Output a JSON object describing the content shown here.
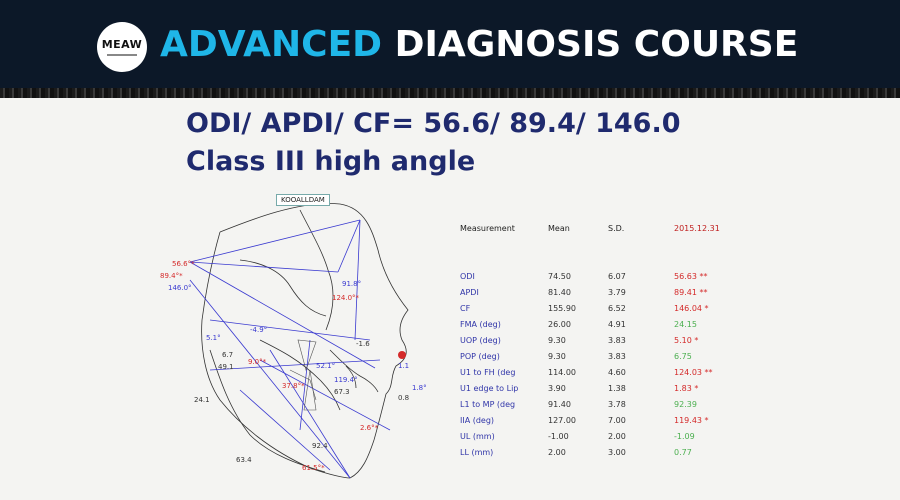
{
  "header": {
    "logo_text": "MEAW",
    "title_highlight": "ADVANCED",
    "title_rest": "DIAGNOSIS COURSE"
  },
  "headings": {
    "line1": "ODI/ APDI/ CF= 56.6/ 89.4/ 146.0",
    "line2": "Class III high angle"
  },
  "tracing": {
    "tag": "KOOALLDAM",
    "labels": [
      "56.6°*",
      "89.4°*",
      "146.0°",
      "91.8°",
      "124.0°*",
      "-4.9°",
      "5.1°",
      "6.7",
      "49.1",
      "-1.6",
      "9.0°*",
      "52.1°",
      "37.8°*",
      "119.4°",
      "67.3",
      "1.1",
      "1.8°",
      "0.8",
      "24.1",
      "2.6°*",
      "92.4",
      "63.4",
      "61.5°*"
    ]
  },
  "table": {
    "headers": [
      "Measurement",
      "Mean",
      "S.D.",
      "2015.12.31"
    ],
    "rows": [
      {
        "name": "ODI",
        "mean": "74.50",
        "sd": "6.07",
        "value": "56.63 **",
        "status": "red"
      },
      {
        "name": "APDI",
        "mean": "81.40",
        "sd": "3.79",
        "value": "89.41 **",
        "status": "red"
      },
      {
        "name": "CF",
        "mean": "155.90",
        "sd": "6.52",
        "value": "146.04 *",
        "status": "red"
      },
      {
        "name": "FMA (deg)",
        "mean": "26.00",
        "sd": "4.91",
        "value": "24.15",
        "status": "green"
      },
      {
        "name": "UOP (deg)",
        "mean": "9.30",
        "sd": "3.83",
        "value": "5.10 *",
        "status": "red"
      },
      {
        "name": "POP (deg)",
        "mean": "9.30",
        "sd": "3.83",
        "value": "6.75",
        "status": "green"
      },
      {
        "name": "U1 to FH (deg",
        "mean": "114.00",
        "sd": "4.60",
        "value": "124.03 **",
        "status": "red"
      },
      {
        "name": "U1 edge to Lip",
        "mean": "3.90",
        "sd": "1.38",
        "value": "1.83 *",
        "status": "red"
      },
      {
        "name": "L1 to MP (deg",
        "mean": "91.40",
        "sd": "3.78",
        "value": "92.39",
        "status": "green"
      },
      {
        "name": "IIA (deg)",
        "mean": "127.00",
        "sd": "7.00",
        "value": "119.43 *",
        "status": "red"
      },
      {
        "name": "UL (mm)",
        "mean": "-1.00",
        "sd": "2.00",
        "value": "-1.09",
        "status": "green"
      },
      {
        "name": "LL (mm)",
        "mean": "2.00",
        "sd": "3.00",
        "value": "0.77",
        "status": "green"
      }
    ],
    "colors": {
      "red": "#d42a2a",
      "green": "#4caf50"
    }
  }
}
